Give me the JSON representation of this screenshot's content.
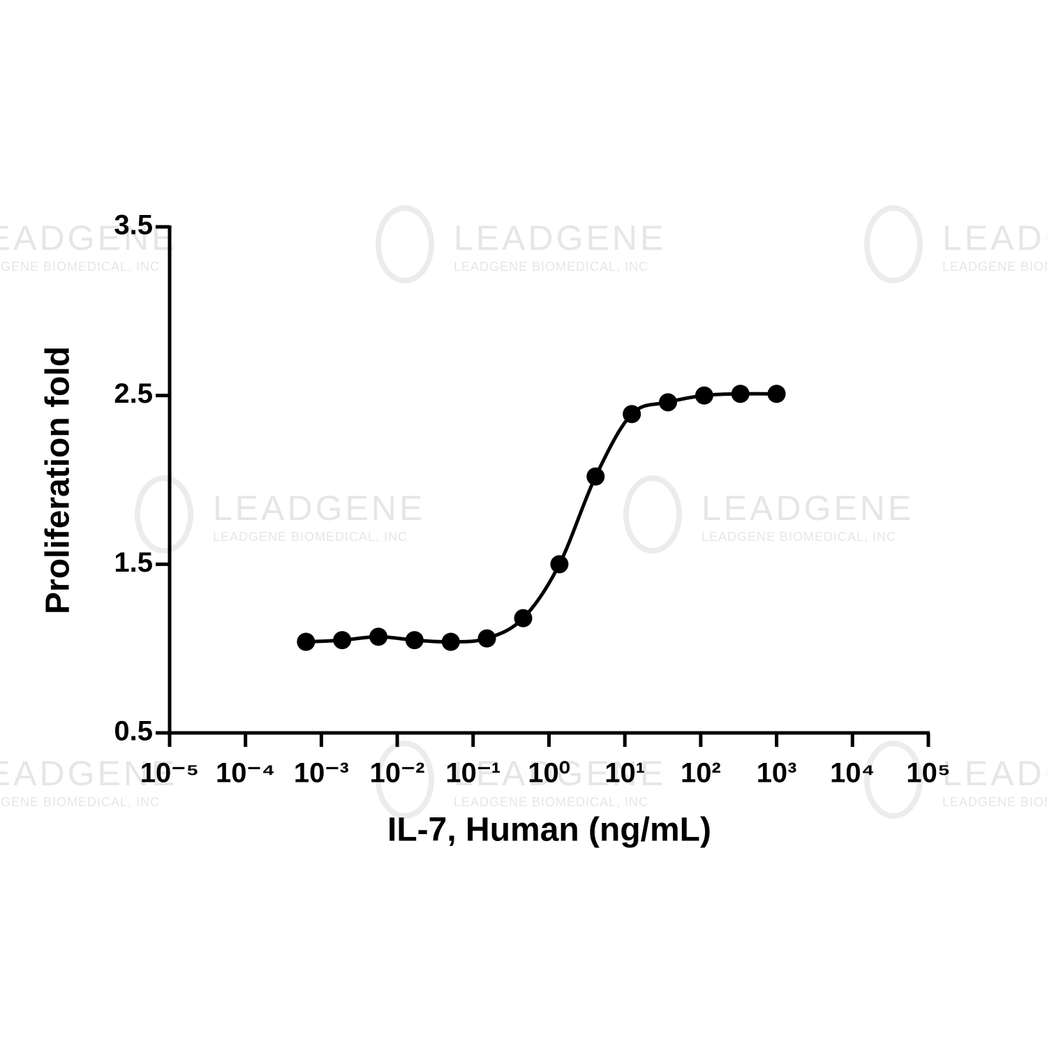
{
  "chart_data": {
    "type": "scatter",
    "watermark": {
      "title": "LEADGENE",
      "subtitle": "LEADGENE BIOMEDICAL, INC"
    },
    "x_label": "IL-7, Human (ng/mL)",
    "y_label": "Proliferation fold",
    "log_x": true,
    "fit_curve": true,
    "series": [
      {
        "color": "#000000",
        "x": [
          0.000627,
          0.00188,
          0.00565,
          0.0169,
          0.0508,
          0.152,
          0.457,
          1.372,
          4.115,
          12.35,
          37.04,
          111.1,
          333.3,
          1000
        ],
        "values": [
          1.04,
          1.05,
          1.07,
          1.05,
          1.04,
          1.06,
          1.18,
          1.5,
          2.02,
          2.39,
          2.46,
          2.5,
          2.51,
          2.51
        ]
      }
    ],
    "xlim": [
      1e-05,
      100000
    ],
    "xticks": [
      {
        "value": 1e-05,
        "label": "10⁻⁵"
      },
      {
        "value": 0.0001,
        "label": "10⁻⁴"
      },
      {
        "value": 0.001,
        "label": "10⁻³"
      },
      {
        "value": 0.01,
        "label": "10⁻²"
      },
      {
        "value": 0.1,
        "label": "10⁻¹"
      },
      {
        "value": 1,
        "label": "10⁰"
      },
      {
        "value": 10,
        "label": "10¹"
      },
      {
        "value": 100,
        "label": "10²"
      },
      {
        "value": 1000,
        "label": "10³"
      },
      {
        "value": 10000,
        "label": "10⁴"
      },
      {
        "value": 100000,
        "label": "10⁵"
      }
    ],
    "ylim": [
      0.5,
      3.5
    ],
    "yticks": [
      0.5,
      1.5,
      2.5,
      3.5
    ]
  }
}
